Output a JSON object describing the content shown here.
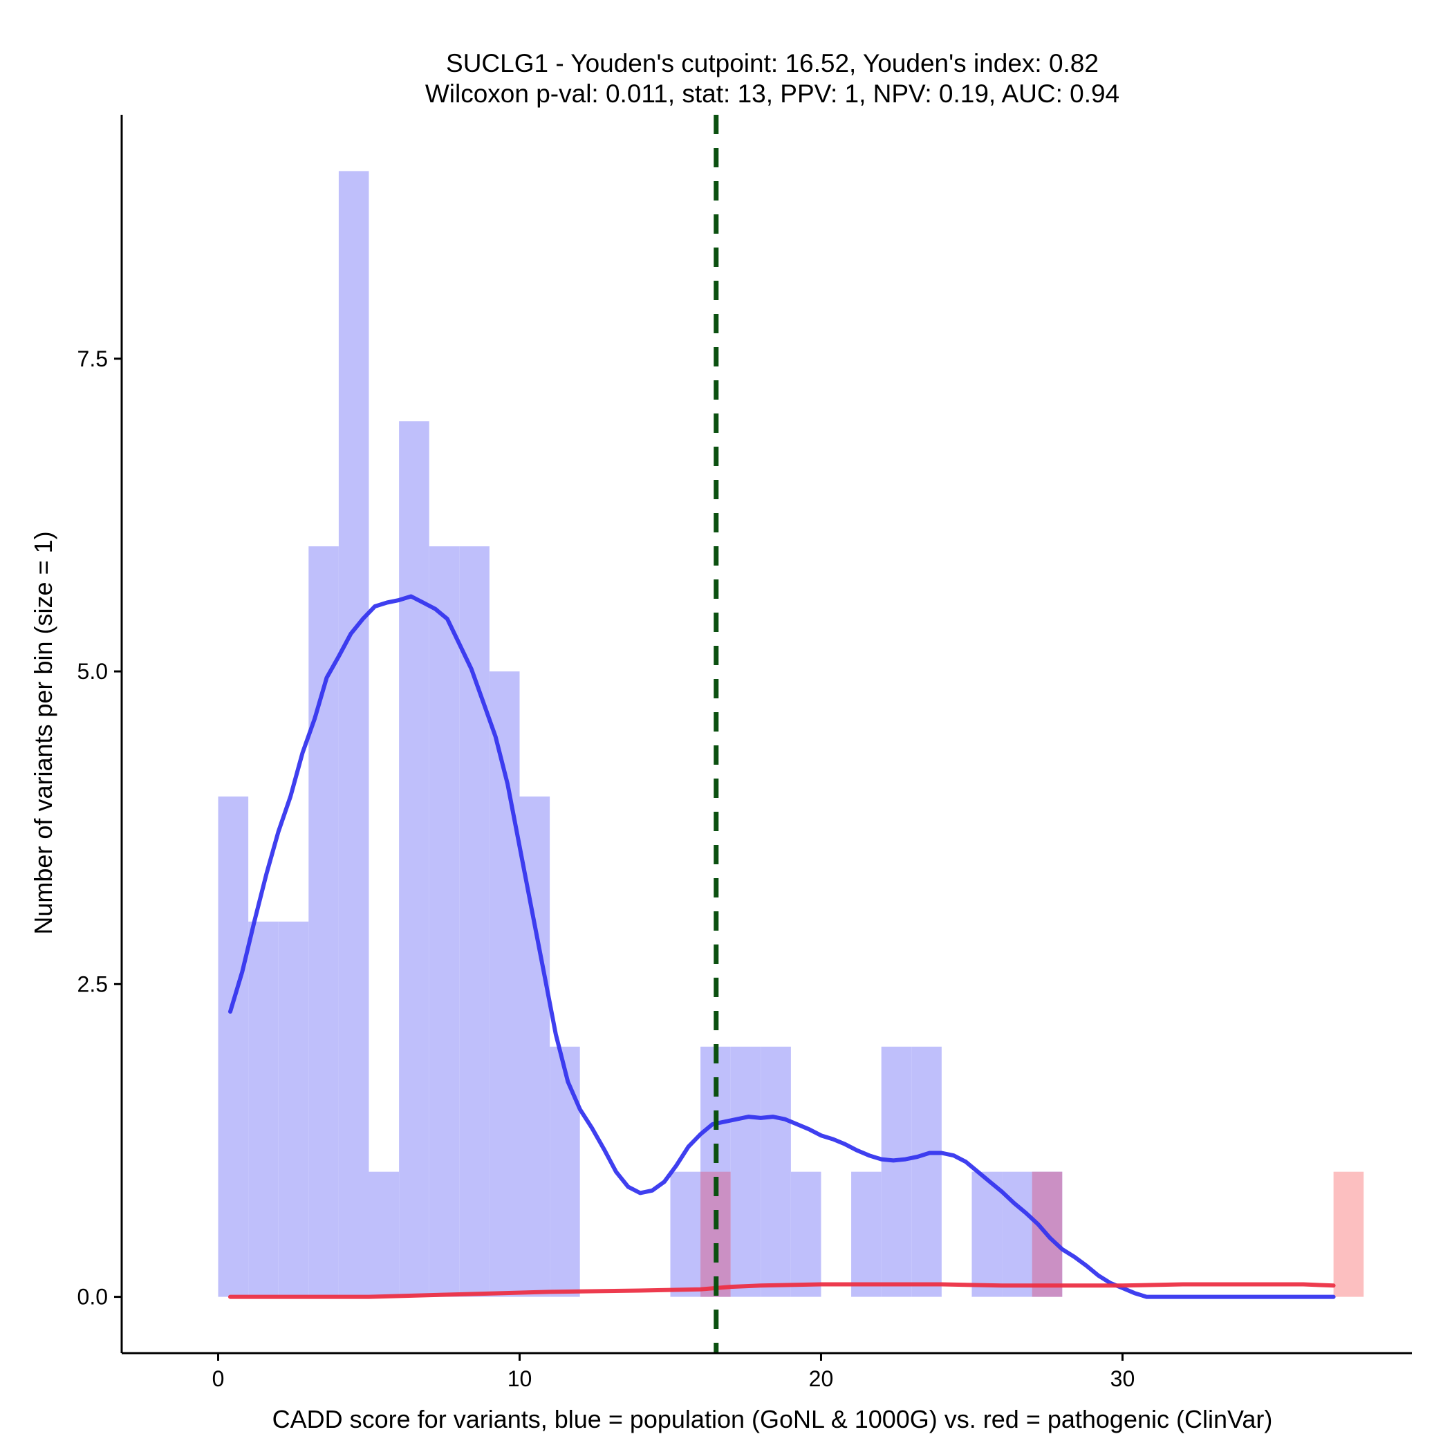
{
  "chart_data": {
    "type": "bar",
    "title": "SUCLG1 - Youden's cutpoint: 16.52, Youden's index: 0.82",
    "subtitle": "Wilcoxon p-val: 0.011, stat: 13, PPV: 1, NPV: 0.19, AUC: 0.94",
    "xlabel": "CADD score for variants, blue = population (GoNL & 1000G) vs. red = pathogenic (ClinVar)",
    "ylabel": "Number of variants per bin (size = 1)",
    "xlim": [
      -3.2,
      39.6
    ],
    "ylim": [
      -0.45,
      9.45
    ],
    "x_ticks": [
      0,
      10,
      20,
      30
    ],
    "x_tick_labels": [
      "0",
      "10",
      "20",
      "30"
    ],
    "y_ticks": [
      0,
      2.5,
      5,
      7.5
    ],
    "y_tick_labels": [
      "0.0",
      "2.5",
      "5.0",
      "7.5"
    ],
    "bin_width": 1,
    "cutpoint": 16.52,
    "colors": {
      "population_bars": "#bfbffb",
      "pathogenic_bars": "#fcbfc0",
      "overlap_bars": "#cb90c4",
      "population_density": "#3535ee",
      "pathogenic_density": "#ec3045",
      "cutpoint_line": "#0b5010"
    },
    "series": [
      {
        "group": "population",
        "bins": [
          {
            "x0": 0,
            "x1": 1,
            "count": 4
          },
          {
            "x0": 1,
            "x1": 2,
            "count": 3
          },
          {
            "x0": 2,
            "x1": 3,
            "count": 3
          },
          {
            "x0": 3,
            "x1": 4,
            "count": 6
          },
          {
            "x0": 4,
            "x1": 5,
            "count": 9
          },
          {
            "x0": 5,
            "x1": 6,
            "count": 1
          },
          {
            "x0": 6,
            "x1": 7,
            "count": 7
          },
          {
            "x0": 7,
            "x1": 8,
            "count": 6
          },
          {
            "x0": 8,
            "x1": 9,
            "count": 6
          },
          {
            "x0": 9,
            "x1": 10,
            "count": 5
          },
          {
            "x0": 10,
            "x1": 11,
            "count": 4
          },
          {
            "x0": 11,
            "x1": 12,
            "count": 2
          },
          {
            "x0": 15,
            "x1": 16,
            "count": 1
          },
          {
            "x0": 16,
            "x1": 17,
            "count": 2
          },
          {
            "x0": 17,
            "x1": 18,
            "count": 2
          },
          {
            "x0": 18,
            "x1": 19,
            "count": 2
          },
          {
            "x0": 19,
            "x1": 20,
            "count": 1
          },
          {
            "x0": 21,
            "x1": 22,
            "count": 1
          },
          {
            "x0": 22,
            "x1": 23,
            "count": 2
          },
          {
            "x0": 23,
            "x1": 24,
            "count": 2
          },
          {
            "x0": 25,
            "x1": 26,
            "count": 1
          },
          {
            "x0": 26,
            "x1": 27,
            "count": 1
          },
          {
            "x0": 27,
            "x1": 28,
            "count": 1
          }
        ]
      },
      {
        "group": "pathogenic",
        "bins": [
          {
            "x0": 16,
            "x1": 17,
            "count": 1
          },
          {
            "x0": 27,
            "x1": 28,
            "count": 1
          },
          {
            "x0": 37,
            "x1": 38,
            "count": 1
          }
        ]
      }
    ],
    "density_curves": [
      {
        "group": "population",
        "x": [
          0.4,
          0.8,
          1.2,
          1.6,
          2.0,
          2.4,
          2.8,
          3.2,
          3.6,
          4.0,
          4.4,
          4.8,
          5.2,
          5.6,
          6.0,
          6.4,
          6.8,
          7.2,
          7.6,
          8.0,
          8.4,
          8.8,
          9.2,
          9.6,
          10.0,
          10.4,
          10.8,
          11.2,
          11.6,
          12.0,
          12.4,
          12.8,
          13.2,
          13.6,
          14.0,
          14.4,
          14.8,
          15.2,
          15.6,
          16.0,
          16.4,
          16.8,
          17.2,
          17.6,
          18.0,
          18.4,
          18.8,
          19.2,
          19.6,
          20.0,
          20.4,
          20.8,
          21.2,
          21.6,
          22.0,
          22.4,
          22.8,
          23.2,
          23.6,
          24.0,
          24.4,
          24.8,
          25.2,
          25.6,
          26.0,
          26.4,
          26.8,
          27.2,
          27.6,
          28.0,
          28.4,
          28.8,
          29.2,
          29.6,
          30.0,
          30.4,
          30.8,
          31.2,
          32.0,
          33.0,
          34.0,
          35.0,
          36.0,
          37.0
        ],
        "y": [
          2.28,
          2.6,
          3.0,
          3.38,
          3.72,
          4.0,
          4.35,
          4.62,
          4.95,
          5.12,
          5.3,
          5.42,
          5.52,
          5.55,
          5.57,
          5.6,
          5.55,
          5.5,
          5.42,
          5.22,
          5.02,
          4.75,
          4.48,
          4.1,
          3.6,
          3.1,
          2.6,
          2.1,
          1.72,
          1.5,
          1.35,
          1.18,
          1.0,
          0.88,
          0.83,
          0.85,
          0.92,
          1.05,
          1.2,
          1.3,
          1.38,
          1.4,
          1.42,
          1.44,
          1.43,
          1.44,
          1.42,
          1.38,
          1.34,
          1.29,
          1.26,
          1.22,
          1.17,
          1.13,
          1.1,
          1.09,
          1.1,
          1.12,
          1.15,
          1.15,
          1.13,
          1.08,
          1.0,
          0.92,
          0.84,
          0.75,
          0.67,
          0.58,
          0.47,
          0.38,
          0.32,
          0.25,
          0.17,
          0.11,
          0.07,
          0.03,
          0.0,
          0.0,
          0.0,
          0.0,
          0.0,
          0.0,
          0.0,
          0.0
        ]
      },
      {
        "group": "pathogenic",
        "x": [
          0.4,
          2.0,
          5.0,
          8.0,
          11.0,
          14.0,
          16.0,
          17.0,
          18.0,
          20.0,
          22.0,
          24.0,
          26.0,
          28.0,
          30.0,
          32.0,
          34.0,
          36.0,
          37.0
        ],
        "y": [
          0.0,
          0.0,
          0.0,
          0.02,
          0.04,
          0.05,
          0.06,
          0.08,
          0.09,
          0.1,
          0.1,
          0.1,
          0.09,
          0.09,
          0.09,
          0.1,
          0.1,
          0.1,
          0.09
        ]
      }
    ]
  }
}
